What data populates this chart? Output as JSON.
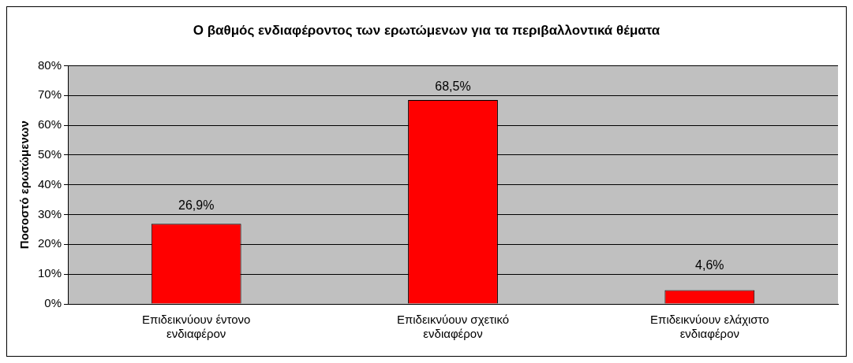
{
  "chart_data": {
    "type": "bar",
    "title": "Ο βαθμός ενδιαφέροντος των ερωτώμενων για τα περιβαλλοντικά θέματα",
    "ylabel": "Ποσοστό ερωτώμενων",
    "categories": [
      [
        "Επιδεικνύουν έντονο",
        "ενδιαφέρον"
      ],
      [
        "Επιδεικνύουν σχετικό",
        "ενδιαφέρον"
      ],
      [
        "Επιδεικνύουν ελάχιστο",
        "ενδιαφέρον"
      ]
    ],
    "values": [
      26.9,
      68.5,
      4.6
    ],
    "color": "#ff0000",
    "value_labels": [
      "26,9%",
      "68,5%",
      "4,6%"
    ],
    "ylim": [
      0,
      80
    ],
    "yticks": [
      {
        "value": 0,
        "label": "0%"
      },
      {
        "value": 10,
        "label": "10%"
      },
      {
        "value": 20,
        "label": "20%"
      },
      {
        "value": 30,
        "label": "30%"
      },
      {
        "value": 40,
        "label": "40%"
      },
      {
        "value": 50,
        "label": "50%"
      },
      {
        "value": 60,
        "label": "60%"
      },
      {
        "value": 70,
        "label": "70%"
      },
      {
        "value": 80,
        "label": "80%"
      }
    ],
    "grid": "y",
    "legend": false
  }
}
